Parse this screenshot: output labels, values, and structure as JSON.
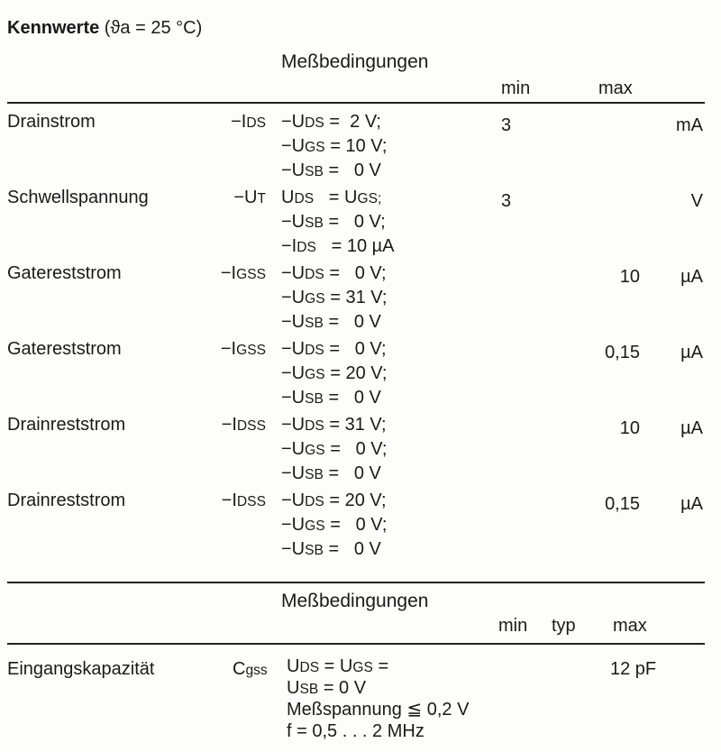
{
  "heading": {
    "bold": "Kennwerte",
    "rest": " (ϑa = 25 °C)"
  },
  "section1": {
    "conditions_header": "Meßbedingungen",
    "col_min": "min",
    "col_max": "max",
    "rows": [
      {
        "name": "Drainstrom",
        "symbol": {
          "pre": "−I",
          "sub": "DS"
        },
        "conditions": [
          {
            "pre": "−U",
            "sub": "DS",
            "post": " =  2 V;"
          },
          {
            "pre": "−U",
            "sub": "GS",
            "post": " = 10 V;"
          },
          {
            "pre": "−U",
            "sub": "SB",
            "post": " =   0 V"
          }
        ],
        "min": "3",
        "max": "",
        "unit": "mA"
      },
      {
        "name": "Schwellspannung",
        "symbol": {
          "pre": "−U",
          "sub": "T"
        },
        "conditions": [
          {
            "pre": "U",
            "sub": "DS",
            "post": "   = U",
            "sub2": "GS;"
          },
          {
            "pre": "−U",
            "sub": "SB",
            "post": " =   0 V;"
          },
          {
            "pre": "−I",
            "sub": "DS",
            "post": "   = 10 µA"
          }
        ],
        "min": "3",
        "max": "",
        "unit": "V"
      },
      {
        "name": "Gatereststrom",
        "symbol": {
          "pre": "−I",
          "sub": "GSS"
        },
        "conditions": [
          {
            "pre": "−U",
            "sub": "DS",
            "post": " =   0 V;"
          },
          {
            "pre": "−U",
            "sub": "GS",
            "post": " = 31 V;"
          },
          {
            "pre": "−U",
            "sub": "SB",
            "post": " =   0 V"
          }
        ],
        "min": "",
        "max": "10",
        "unit": "µA"
      },
      {
        "name": "Gatereststrom",
        "symbol": {
          "pre": "−I",
          "sub": "GSS"
        },
        "conditions": [
          {
            "pre": "−U",
            "sub": "DS",
            "post": " =   0 V;"
          },
          {
            "pre": "−U",
            "sub": "GS",
            "post": " = 20 V;"
          },
          {
            "pre": "−U",
            "sub": "SB",
            "post": " =   0 V"
          }
        ],
        "min": "",
        "max": "0,15",
        "unit": "µA"
      },
      {
        "name": "Drainreststrom",
        "symbol": {
          "pre": "−I",
          "sub": "DSS"
        },
        "conditions": [
          {
            "pre": "−U",
            "sub": "DS",
            "post": " = 31 V;"
          },
          {
            "pre": "−U",
            "sub": "GS",
            "post": " =   0 V;"
          },
          {
            "pre": "−U",
            "sub": "SB",
            "post": " =   0 V"
          }
        ],
        "min": "",
        "max": "10",
        "unit": "µA"
      },
      {
        "name": "Drainreststrom",
        "symbol": {
          "pre": "−I",
          "sub": "DSS"
        },
        "conditions": [
          {
            "pre": "−U",
            "sub": "DS",
            "post": " = 20 V;"
          },
          {
            "pre": "−U",
            "sub": "GS",
            "post": " =   0 V;"
          },
          {
            "pre": "−U",
            "sub": "SB",
            "post": " =   0 V"
          }
        ],
        "min": "",
        "max": "0,15",
        "unit": "µA"
      }
    ]
  },
  "section2": {
    "conditions_header": "Meßbedingungen",
    "col_min": "min",
    "col_typ": "typ",
    "col_max": "max",
    "row": {
      "name": "Eingangskapazität",
      "symbol": {
        "pre": "C",
        "sub": "gss"
      },
      "conditions": [
        {
          "pre": "U",
          "sub": "DS",
          "post": " = U",
          "sub2": "GS",
          "post2": " ="
        },
        {
          "pre": "U",
          "sub": "SB",
          "post": " = 0 V"
        },
        {
          "pre": "Meßspannung ≦ 0,2 V",
          "sub": "",
          "post": ""
        },
        {
          "pre": "f = 0,5 . . . 2 MHz",
          "sub": "",
          "post": ""
        }
      ],
      "max": "12 pF"
    }
  }
}
